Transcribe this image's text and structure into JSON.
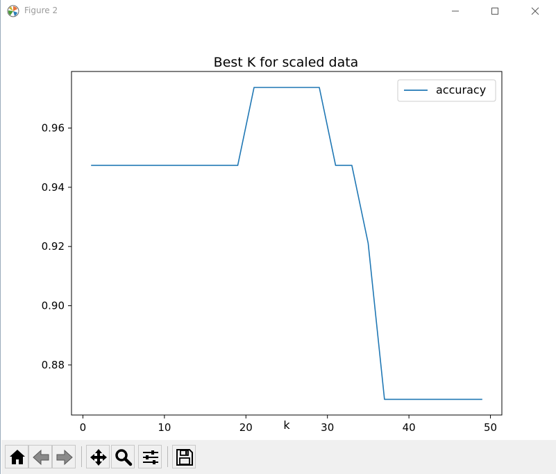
{
  "window": {
    "title": "Figure 2",
    "controls": [
      "minimize",
      "maximize",
      "close"
    ],
    "app_icon": "matplotlib-logo-icon"
  },
  "toolbar": {
    "buttons": [
      {
        "name": "home",
        "icon": "home-icon"
      },
      {
        "name": "back",
        "icon": "arrow-left-icon"
      },
      {
        "name": "forward",
        "icon": "arrow-right-icon"
      },
      {
        "name": "pan",
        "icon": "move-icon"
      },
      {
        "name": "zoom",
        "icon": "magnifier-icon"
      },
      {
        "name": "configure-subplots",
        "icon": "sliders-icon"
      },
      {
        "name": "save",
        "icon": "floppy-disk-icon"
      }
    ]
  },
  "chart_data": {
    "type": "line",
    "title": "Best K for scaled data",
    "xlabel": "k",
    "ylabel": "",
    "xlim": [
      -1.4,
      51.4
    ],
    "ylim": [
      0.8631,
      0.9791
    ],
    "xticks": [
      0,
      10,
      20,
      30,
      40,
      50
    ],
    "yticks": [
      0.88,
      0.9,
      0.92,
      0.94,
      0.96
    ],
    "ytick_labels": [
      "0.88",
      "0.90",
      "0.92",
      "0.94",
      "0.96"
    ],
    "grid": false,
    "legend": {
      "placement": "top-right",
      "entries": [
        "accuracy"
      ]
    },
    "series": [
      {
        "name": "accuracy",
        "color": "#1f77b4",
        "x": [
          1,
          3,
          5,
          7,
          9,
          11,
          13,
          15,
          17,
          19,
          21,
          23,
          25,
          27,
          29,
          31,
          33,
          35,
          37,
          39,
          41,
          43,
          45,
          47,
          49
        ],
        "y": [
          0.9474,
          0.9474,
          0.9474,
          0.9474,
          0.9474,
          0.9474,
          0.9474,
          0.9474,
          0.9474,
          0.9474,
          0.9737,
          0.9737,
          0.9737,
          0.9737,
          0.9737,
          0.9474,
          0.9474,
          0.9211,
          0.8684,
          0.8684,
          0.8684,
          0.8684,
          0.8684,
          0.8684,
          0.8684
        ]
      }
    ]
  }
}
